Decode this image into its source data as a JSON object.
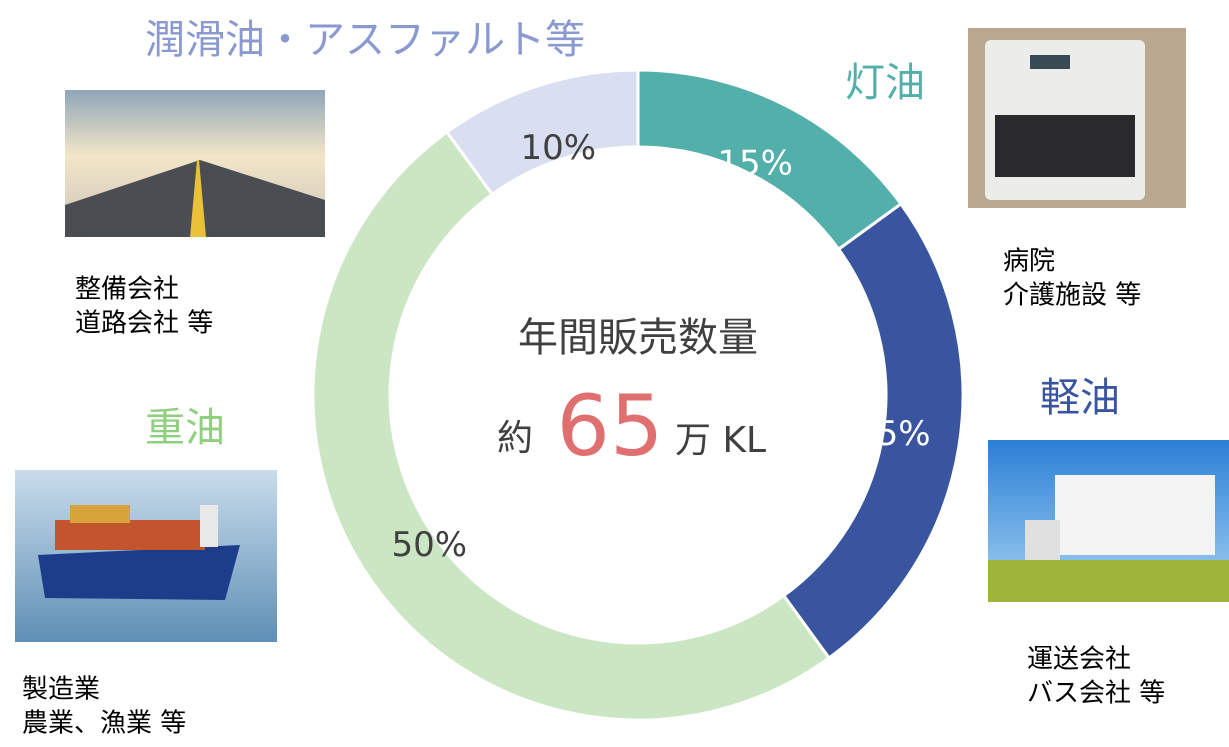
{
  "chart_data": {
    "type": "pie",
    "categories": [
      "灯油",
      "軽油",
      "重油",
      "潤滑油・アスファルト等"
    ],
    "values": [
      15,
      25,
      50,
      10
    ],
    "value_labels": [
      "15%",
      "25%",
      "50%",
      "10%"
    ],
    "colors": [
      "#52afa9",
      "#3a55a0",
      "#cbe6c3",
      "#d9def0"
    ],
    "descriptions": [
      [
        "病院",
        "介護施設 等"
      ],
      [
        "運送会社",
        "バス会社 等"
      ],
      [
        "製造業",
        "農業、漁業 等"
      ],
      [
        "整備会社",
        "道路会社 等"
      ]
    ],
    "center_title": "年間販売数量",
    "center_prefix": "約",
    "center_value": 65,
    "center_unit": "万 KL"
  }
}
